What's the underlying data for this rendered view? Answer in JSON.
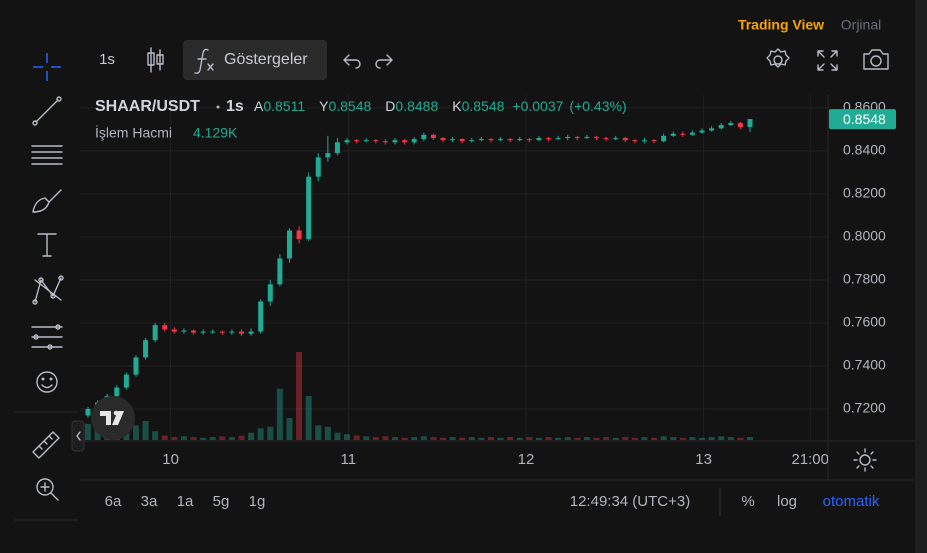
{
  "toolbar": {
    "interval": "1s",
    "indicators": "Göstergeler"
  },
  "header_links": {
    "tradingview": "Trading View",
    "original": "Orjinal"
  },
  "chart_data": {
    "type": "candlestick",
    "symbol": "SHAAR/USDT",
    "interval": "1s",
    "ohlc_labels": [
      "A",
      "Y",
      "D",
      "K"
    ],
    "change": {
      "value": 0.0037,
      "label": "+0.0037"
    },
    "change_pct": {
      "value": 0.43,
      "label": "(+0.43%)"
    },
    "x": [
      9.535,
      9.589,
      9.643,
      9.697,
      9.751,
      9.805,
      9.859,
      9.913,
      9.967,
      10.021,
      10.075,
      10.129,
      10.183,
      10.237,
      10.291,
      10.345,
      10.399,
      10.453,
      10.507,
      10.561,
      10.615,
      10.669,
      10.723,
      10.777,
      10.831,
      10.885,
      10.939,
      10.993,
      11.047,
      11.101,
      11.155,
      11.209,
      11.263,
      11.317,
      11.371,
      11.425,
      11.479,
      11.533,
      11.587,
      11.641,
      11.695,
      11.749,
      11.803,
      11.857,
      11.911,
      11.965,
      12.019,
      12.073,
      12.127,
      12.181,
      12.235,
      12.289,
      12.343,
      12.397,
      12.451,
      12.505,
      12.559,
      12.613,
      12.667,
      12.721,
      12.775,
      12.829,
      12.883,
      12.937,
      12.991,
      13.045,
      13.099,
      13.153,
      13.207,
      13.261
    ],
    "open": [
      0.717,
      0.72,
      0.723,
      0.726,
      0.73,
      0.736,
      0.744,
      0.752,
      0.759,
      0.757,
      0.756,
      0.7565,
      0.7555,
      0.756,
      0.756,
      0.7555,
      0.756,
      0.755,
      0.756,
      0.77,
      0.778,
      0.79,
      0.803,
      0.799,
      0.828,
      0.837,
      0.839,
      0.844,
      0.845,
      0.8445,
      0.845,
      0.8445,
      0.844,
      0.845,
      0.844,
      0.8455,
      0.8475,
      0.846,
      0.845,
      0.8455,
      0.8445,
      0.845,
      0.8455,
      0.845,
      0.8455,
      0.845,
      0.8455,
      0.845,
      0.846,
      0.8455,
      0.846,
      0.8465,
      0.846,
      0.8465,
      0.846,
      0.8455,
      0.846,
      0.845,
      0.8445,
      0.845,
      0.8445,
      0.847,
      0.848,
      0.8475,
      0.8485,
      0.8495,
      0.8505,
      0.852,
      0.853,
      0.8511
    ],
    "high": [
      0.721,
      0.724,
      0.727,
      0.731,
      0.737,
      0.745,
      0.753,
      0.76,
      0.76,
      0.758,
      0.7575,
      0.757,
      0.757,
      0.757,
      0.7565,
      0.757,
      0.757,
      0.7575,
      0.771,
      0.78,
      0.792,
      0.804,
      0.805,
      0.83,
      0.839,
      0.847,
      0.846,
      0.846,
      0.8455,
      0.846,
      0.8455,
      0.8455,
      0.846,
      0.8455,
      0.8465,
      0.8485,
      0.848,
      0.8465,
      0.8465,
      0.846,
      0.846,
      0.8465,
      0.846,
      0.8465,
      0.846,
      0.8465,
      0.846,
      0.847,
      0.8465,
      0.847,
      0.8475,
      0.847,
      0.8475,
      0.847,
      0.8465,
      0.847,
      0.8465,
      0.8455,
      0.846,
      0.8455,
      0.848,
      0.849,
      0.849,
      0.8495,
      0.8505,
      0.8515,
      0.853,
      0.854,
      0.8535,
      0.8548
    ],
    "low": [
      0.716,
      0.719,
      0.722,
      0.725,
      0.729,
      0.735,
      0.743,
      0.751,
      0.756,
      0.755,
      0.755,
      0.7545,
      0.7545,
      0.755,
      0.7545,
      0.7545,
      0.754,
      0.754,
      0.755,
      0.768,
      0.777,
      0.788,
      0.797,
      0.798,
      0.826,
      0.835,
      0.838,
      0.843,
      0.8435,
      0.844,
      0.8435,
      0.843,
      0.843,
      0.843,
      0.843,
      0.8445,
      0.845,
      0.844,
      0.844,
      0.8435,
      0.844,
      0.8445,
      0.844,
      0.8445,
      0.844,
      0.8445,
      0.844,
      0.8445,
      0.8445,
      0.845,
      0.845,
      0.845,
      0.8455,
      0.845,
      0.8445,
      0.845,
      0.844,
      0.8435,
      0.8435,
      0.8435,
      0.844,
      0.8465,
      0.8465,
      0.847,
      0.848,
      0.849,
      0.85,
      0.8515,
      0.85,
      0.8488
    ],
    "close": [
      0.72,
      0.723,
      0.726,
      0.73,
      0.736,
      0.744,
      0.752,
      0.759,
      0.757,
      0.756,
      0.7565,
      0.7555,
      0.756,
      0.756,
      0.7555,
      0.756,
      0.755,
      0.756,
      0.77,
      0.778,
      0.79,
      0.803,
      0.799,
      0.828,
      0.837,
      0.839,
      0.844,
      0.845,
      0.8445,
      0.845,
      0.8445,
      0.844,
      0.845,
      0.844,
      0.8455,
      0.8475,
      0.846,
      0.845,
      0.8455,
      0.8445,
      0.845,
      0.8455,
      0.845,
      0.8455,
      0.845,
      0.8455,
      0.845,
      0.846,
      0.8455,
      0.846,
      0.8465,
      0.846,
      0.8465,
      0.846,
      0.8455,
      0.846,
      0.845,
      0.8445,
      0.845,
      0.8445,
      0.847,
      0.848,
      0.8475,
      0.8485,
      0.8495,
      0.8505,
      0.852,
      0.853,
      0.8511,
      0.8548
    ],
    "up_color": "#22ab94",
    "down_color": "#f23645",
    "volume": {
      "name": "İşlem Hacmi",
      "values": [
        22000,
        20000,
        24000,
        26000,
        24000,
        20000,
        26000,
        12000,
        6000,
        4000,
        5000,
        4000,
        3000,
        4000,
        5000,
        4000,
        6000,
        10000,
        16000,
        18000,
        70000,
        30000,
        120000,
        60000,
        20000,
        18000,
        10000,
        8000,
        6000,
        5000,
        4000,
        5000,
        4000,
        3000,
        4000,
        5000,
        4000,
        3000,
        4000,
        3000,
        4000,
        3000,
        4000,
        3000,
        4000,
        3000,
        4000,
        3000,
        4000,
        3000,
        4000,
        3000,
        4000,
        3000,
        4000,
        3000,
        4000,
        3000,
        4000,
        3000,
        5000,
        4000,
        3000,
        4000,
        3000,
        4000,
        5000,
        4000,
        3000,
        4129
      ],
      "last_label": "4.129K"
    },
    "xlim": [
      9.49,
      13.7
    ],
    "xticks": [
      10,
      11,
      12,
      13,
      {
        "value": 13.6,
        "label": "21:00"
      }
    ],
    "ylim": [
      0.7056,
      0.866
    ],
    "yticks": [
      {
        "value": 0.72,
        "label": "0.7200"
      },
      {
        "value": 0.74,
        "label": "0.7400"
      },
      {
        "value": 0.76,
        "label": "0.7600"
      },
      {
        "value": 0.78,
        "label": "0.7800"
      },
      {
        "value": 0.8,
        "label": "0.8000"
      },
      {
        "value": 0.82,
        "label": "0.8200"
      },
      {
        "value": 0.84,
        "label": "0.8400"
      },
      {
        "value": 0.86,
        "label": "0.8600"
      }
    ],
    "grid": true
  },
  "bottom_bar": {
    "ranges": [
      "6a",
      "3a",
      "1a",
      "5g",
      "1g"
    ],
    "clock": "12:49:34 (UTC+3)",
    "percent": "%",
    "log": "log",
    "auto": "otomatik"
  }
}
